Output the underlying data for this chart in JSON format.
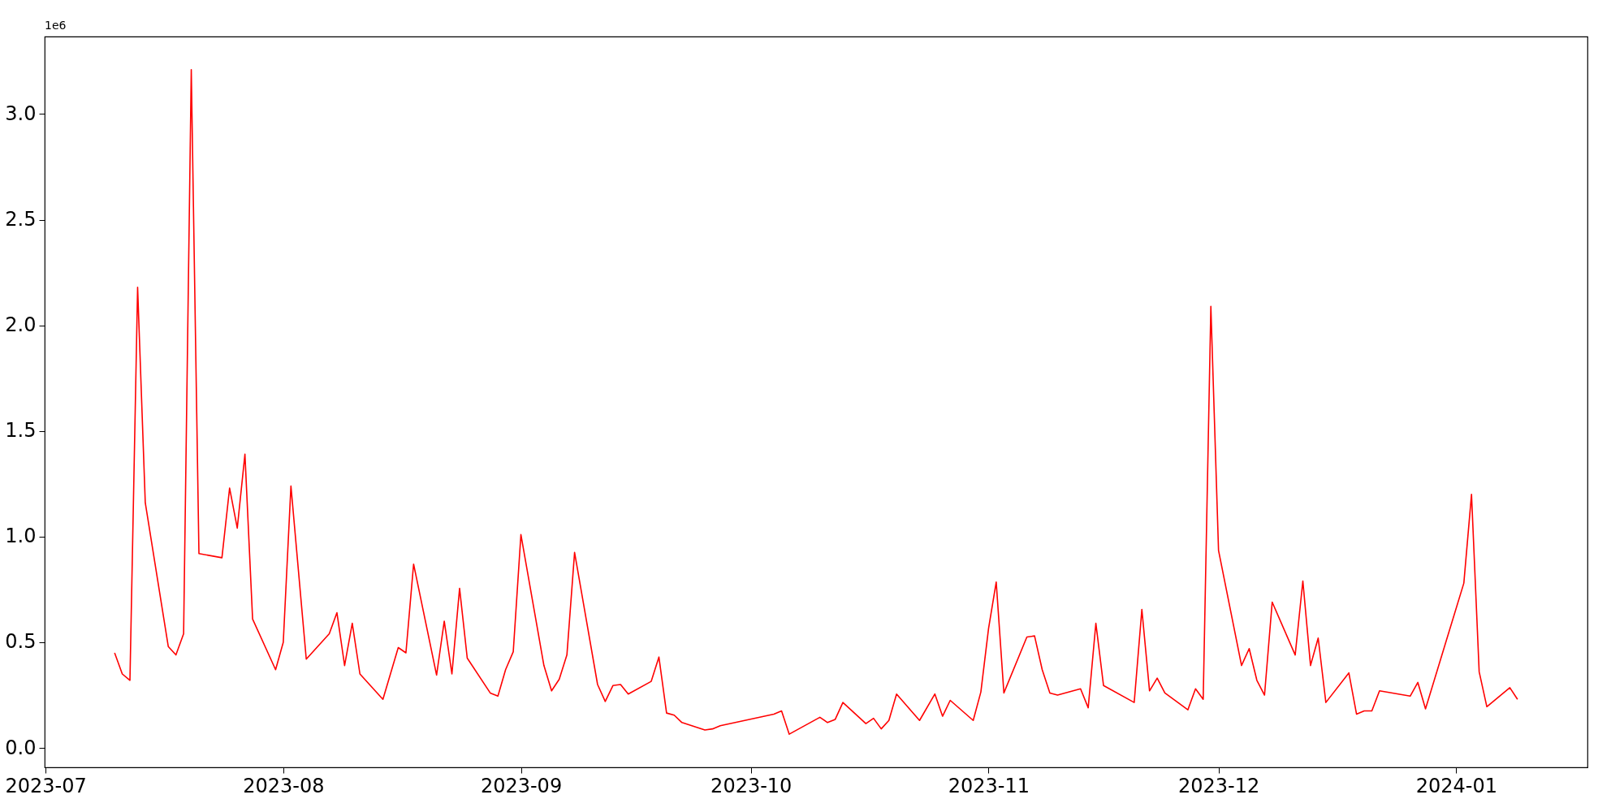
{
  "chart_data": {
    "type": "line",
    "x": [
      "2023-07-10",
      "2023-07-11",
      "2023-07-12",
      "2023-07-13",
      "2023-07-14",
      "2023-07-17",
      "2023-07-18",
      "2023-07-19",
      "2023-07-20",
      "2023-07-21",
      "2023-07-24",
      "2023-07-25",
      "2023-07-26",
      "2023-07-27",
      "2023-07-28",
      "2023-07-31",
      "2023-08-01",
      "2023-08-02",
      "2023-08-04",
      "2023-08-07",
      "2023-08-08",
      "2023-08-09",
      "2023-08-10",
      "2023-08-11",
      "2023-08-14",
      "2023-08-16",
      "2023-08-17",
      "2023-08-18",
      "2023-08-21",
      "2023-08-22",
      "2023-08-23",
      "2023-08-24",
      "2023-08-25",
      "2023-08-28",
      "2023-08-29",
      "2023-08-30",
      "2023-08-31",
      "2023-09-01",
      "2023-09-04",
      "2023-09-05",
      "2023-09-06",
      "2023-09-07",
      "2023-09-08",
      "2023-09-11",
      "2023-09-12",
      "2023-09-13",
      "2023-09-14",
      "2023-09-15",
      "2023-09-18",
      "2023-09-19",
      "2023-09-20",
      "2023-09-21",
      "2023-09-22",
      "2023-09-25",
      "2023-09-26",
      "2023-09-27",
      "2023-10-04",
      "2023-10-05",
      "2023-10-06",
      "2023-10-10",
      "2023-10-11",
      "2023-10-12",
      "2023-10-13",
      "2023-10-16",
      "2023-10-17",
      "2023-10-18",
      "2023-10-19",
      "2023-10-20",
      "2023-10-23",
      "2023-10-25",
      "2023-10-26",
      "2023-10-27",
      "2023-10-30",
      "2023-10-31",
      "2023-11-01",
      "2023-11-02",
      "2023-11-03",
      "2023-11-06",
      "2023-11-07",
      "2023-11-08",
      "2023-11-09",
      "2023-11-10",
      "2023-11-13",
      "2023-11-14",
      "2023-11-15",
      "2023-11-16",
      "2023-11-20",
      "2023-11-21",
      "2023-11-22",
      "2023-11-23",
      "2023-11-24",
      "2023-11-27",
      "2023-11-28",
      "2023-11-29",
      "2023-11-30",
      "2023-12-01",
      "2023-12-04",
      "2023-12-05",
      "2023-12-06",
      "2023-12-07",
      "2023-12-08",
      "2023-12-11",
      "2023-12-12",
      "2023-12-13",
      "2023-12-14",
      "2023-12-15",
      "2023-12-18",
      "2023-12-19",
      "2023-12-20",
      "2023-12-21",
      "2023-12-22",
      "2023-12-26",
      "2023-12-27",
      "2023-12-28",
      "2024-01-02",
      "2024-01-03",
      "2024-01-04",
      "2024-01-05",
      "2024-01-08",
      "2024-01-09"
    ],
    "series": [
      {
        "color": "#ff0000",
        "values": [
          0.45,
          0.35,
          0.32,
          2.18,
          1.16,
          0.48,
          0.44,
          0.54,
          3.21,
          0.92,
          0.9,
          1.23,
          1.04,
          1.39,
          0.61,
          0.37,
          0.5,
          1.24,
          0.42,
          0.54,
          0.64,
          0.39,
          0.59,
          0.35,
          0.23,
          0.475,
          0.45,
          0.87,
          0.345,
          0.6,
          0.35,
          0.755,
          0.425,
          0.26,
          0.245,
          0.37,
          0.455,
          1.01,
          0.39,
          0.27,
          0.325,
          0.44,
          0.925,
          0.3,
          0.22,
          0.295,
          0.3,
          0.255,
          0.315,
          0.43,
          0.165,
          0.155,
          0.12,
          0.085,
          0.09,
          0.105,
          0.16,
          0.175,
          0.065,
          0.145,
          0.12,
          0.135,
          0.215,
          0.115,
          0.14,
          0.09,
          0.13,
          0.255,
          0.13,
          0.255,
          0.15,
          0.225,
          0.13,
          0.265,
          0.565,
          0.785,
          0.26,
          0.525,
          0.53,
          0.37,
          0.26,
          0.25,
          0.28,
          0.19,
          0.59,
          0.295,
          0.215,
          0.655,
          0.27,
          0.33,
          0.26,
          0.18,
          0.28,
          0.23,
          2.09,
          0.935,
          0.39,
          0.47,
          0.32,
          0.25,
          0.69,
          0.44,
          0.79,
          0.39,
          0.52,
          0.215,
          0.355,
          0.16,
          0.175,
          0.175,
          0.27,
          0.245,
          0.31,
          0.185,
          0.78,
          1.2,
          0.36,
          0.195,
          0.285,
          0.23
        ]
      }
    ],
    "xlim": [
      "2023-06-30T21:00",
      "2024-01-18T03:00"
    ],
    "xticks": [
      {
        "value": "2023-07-01",
        "label": "2023-07"
      },
      {
        "value": "2023-08-01",
        "label": "2023-08"
      },
      {
        "value": "2023-09-01",
        "label": "2023-09"
      },
      {
        "value": "2023-10-01",
        "label": "2023-10"
      },
      {
        "value": "2023-11-01",
        "label": "2023-11"
      },
      {
        "value": "2023-12-01",
        "label": "2023-12"
      },
      {
        "value": "2024-01-01",
        "label": "2024-01"
      }
    ],
    "ylim": [
      -0.092,
      3.367
    ],
    "yticks": [
      {
        "value": 0,
        "label": "0.0"
      },
      0.5,
      {
        "value": 1,
        "label": "1.0"
      },
      1.5,
      {
        "value": 2,
        "label": "2.0"
      },
      2.5,
      {
        "value": 3,
        "label": "3.0"
      }
    ],
    "annotations": [
      "1e6"
    ],
    "grid": false,
    "marker": "none",
    "line_style": "solid"
  }
}
